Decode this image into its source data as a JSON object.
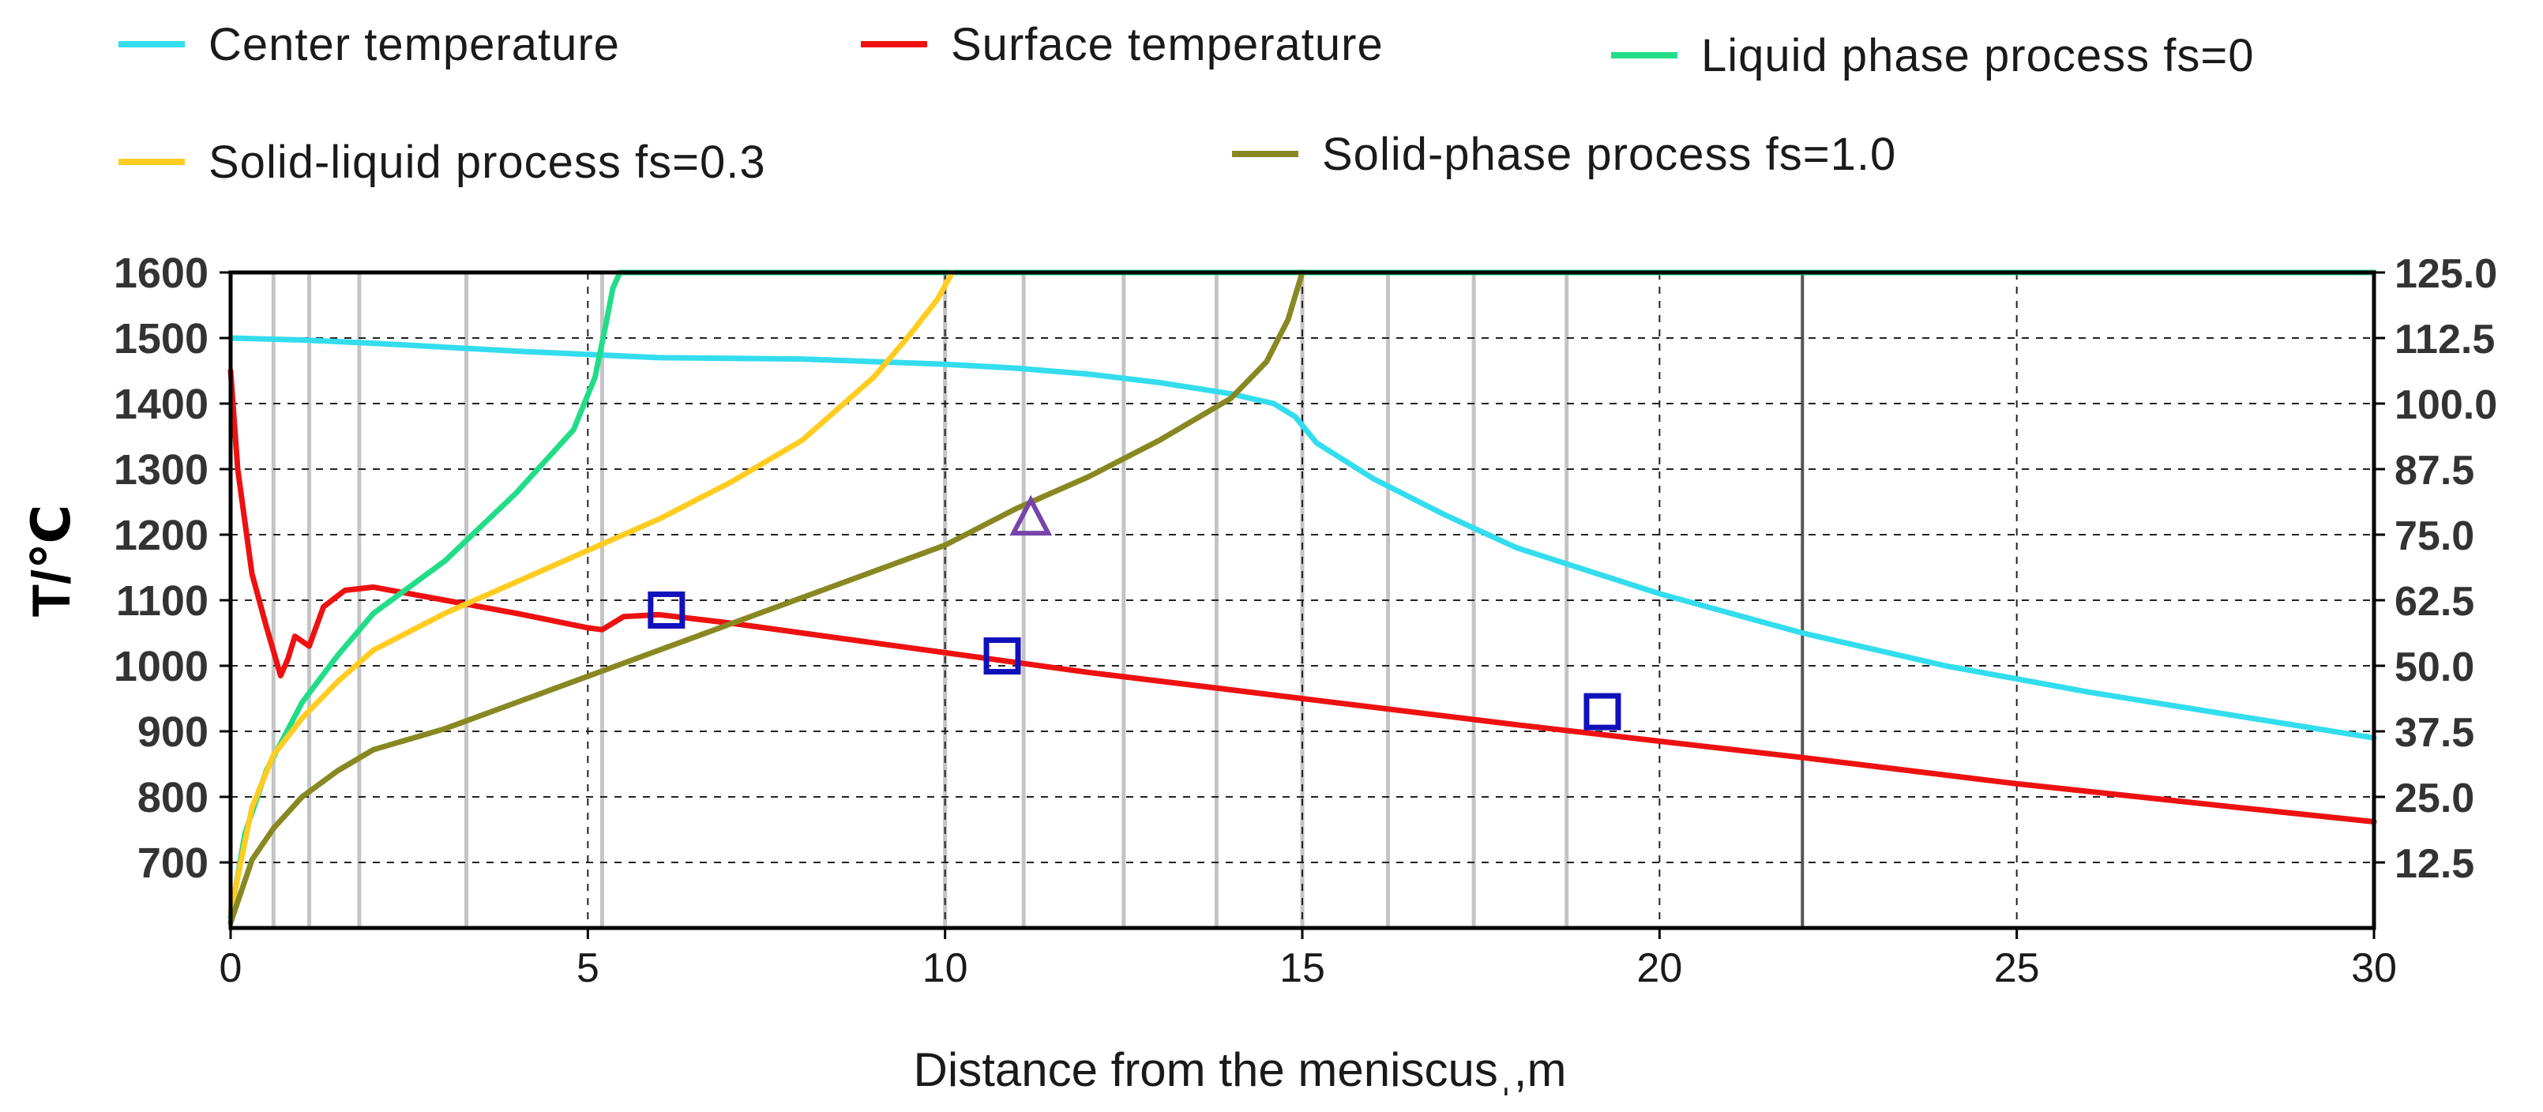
{
  "chart_data": {
    "type": "line",
    "title": "",
    "xlabel": "Distance from the meniscusˌ,m",
    "ylabel": "T/℃",
    "xlim": [
      0,
      30
    ],
    "ylim": [
      600,
      1600
    ],
    "y2lim": [
      0,
      125
    ],
    "x_ticks": [
      0,
      5,
      10,
      15,
      20,
      25,
      30
    ],
    "x_tick_labels": [
      "0",
      "5",
      "10",
      "15",
      "20",
      "25",
      "30"
    ],
    "y_ticks": [
      700,
      800,
      900,
      1000,
      1100,
      1200,
      1300,
      1400,
      1500,
      1600
    ],
    "y_tick_labels": [
      "700",
      "800",
      "900",
      "1000",
      "1100",
      "1200",
      "1300",
      "1400",
      "1500",
      "1600"
    ],
    "y2_ticks": [
      12.5,
      25,
      37.5,
      50,
      62.5,
      75,
      87.5,
      100,
      112.5,
      125
    ],
    "y2_tick_labels": [
      "12.5",
      "25.0",
      "37.5",
      "50.0",
      "62.5",
      "75.0",
      "87.5",
      "100.0",
      "112.5",
      "125.0"
    ],
    "grid": true,
    "section_boundaries": [
      0.6,
      1.1,
      1.8,
      3.3,
      5.2,
      10.0,
      11.1,
      12.5,
      13.8,
      15.0,
      16.2,
      17.4,
      18.7,
      22.0
    ],
    "series": [
      {
        "name": "Center temperature",
        "color": "#33ddee",
        "axis": "left",
        "x": [
          0,
          1,
          2,
          4,
          6,
          8,
          10,
          11,
          12,
          13,
          14,
          14.6,
          14.9,
          15.2,
          16,
          17,
          18,
          20,
          22,
          24,
          26,
          28,
          30
        ],
        "y": [
          1500,
          1497,
          1492,
          1480,
          1470,
          1468,
          1460,
          1454,
          1445,
          1432,
          1415,
          1400,
          1380,
          1340,
          1285,
          1230,
          1180,
          1110,
          1050,
          1000,
          960,
          925,
          890
        ]
      },
      {
        "name": "Surface temperature",
        "color": "#ee1111",
        "axis": "left",
        "x": [
          0,
          0.1,
          0.3,
          0.5,
          0.7,
          0.8,
          0.9,
          1.1,
          1.3,
          1.6,
          2.0,
          2.5,
          3,
          4,
          5,
          5.2,
          5.5,
          6,
          7,
          8,
          10,
          12,
          15,
          18,
          20,
          22,
          25,
          28,
          30
        ],
        "y": [
          1450,
          1300,
          1140,
          1060,
          985,
          1010,
          1045,
          1030,
          1090,
          1115,
          1120,
          1110,
          1100,
          1080,
          1058,
          1055,
          1075,
          1078,
          1065,
          1050,
          1020,
          990,
          950,
          910,
          885,
          860,
          820,
          785,
          762
        ]
      },
      {
        "name": "Liquid phase process fs=0",
        "color": "#22dd88",
        "axis": "right",
        "x": [
          0,
          0.2,
          0.5,
          1,
          1.5,
          2,
          3,
          4,
          4.8,
          5.1,
          5.25,
          5.35,
          5.45,
          30
        ],
        "y": [
          2,
          18,
          30,
          43,
          52,
          60,
          70,
          83,
          95,
          105,
          115,
          122,
          125,
          125
        ]
      },
      {
        "name": "Solid-liquid process fs=0.3",
        "color": "#ffcc22",
        "axis": "right",
        "x": [
          0,
          0.3,
          0.6,
          1,
          1.5,
          2,
          3,
          4,
          5,
          6,
          7,
          8,
          9,
          9.5,
          9.9,
          10.1
        ],
        "y": [
          3,
          23,
          33,
          40,
          47,
          53,
          60,
          66,
          72,
          78,
          85,
          93,
          105,
          113,
          120,
          125
        ]
      },
      {
        "name": "Solid-phase process fs=1.0",
        "color": "#888822",
        "axis": "right",
        "x": [
          0,
          0.3,
          0.6,
          1,
          1.5,
          2,
          3,
          4,
          5,
          6,
          7,
          8,
          9,
          10,
          11,
          12,
          13,
          14,
          14.5,
          14.8,
          15
        ],
        "y": [
          1,
          13,
          19,
          25,
          30,
          34,
          38,
          43,
          48,
          53,
          58,
          63,
          68,
          73,
          80,
          86,
          93,
          101,
          108,
          116,
          125
        ]
      }
    ],
    "markers": [
      {
        "name": "measured-point",
        "shape": "square",
        "color": "#1111bb",
        "x": 6.1,
        "y": 1085,
        "axis": "left"
      },
      {
        "name": "measured-point",
        "shape": "square",
        "color": "#1111bb",
        "x": 10.8,
        "y": 1015,
        "axis": "left"
      },
      {
        "name": "measured-point",
        "shape": "square",
        "color": "#1111bb",
        "x": 19.2,
        "y": 930,
        "axis": "left"
      },
      {
        "name": "measured-point",
        "shape": "triangle",
        "color": "#7744aa",
        "x": 11.2,
        "y": 78,
        "axis": "right"
      }
    ]
  }
}
